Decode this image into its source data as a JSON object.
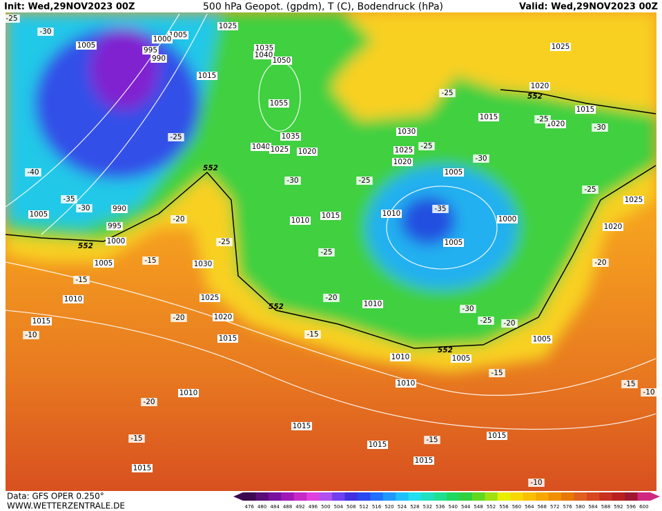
{
  "header": {
    "init": "Init: Wed,29NOV2023 00Z",
    "title": "500 hPa Geopot. (gpdm), T (C), Bodendruck (hPa)",
    "valid": "Valid: Wed,29NOV2023 00Z"
  },
  "footer": {
    "source": "Data: GFS OPER 0.250°",
    "url": "WWW.WETTERZENTRALE.DE"
  },
  "colorbar": {
    "levels": [
      476,
      480,
      484,
      488,
      492,
      496,
      500,
      504,
      508,
      512,
      516,
      520,
      524,
      528,
      532,
      536,
      540,
      544,
      548,
      552,
      556,
      560,
      564,
      568,
      572,
      576,
      580,
      584,
      588,
      592,
      596,
      600
    ],
    "colors": [
      "#3b0a50",
      "#5a0c78",
      "#7a10a0",
      "#a018b8",
      "#c828c8",
      "#e040e0",
      "#b050f0",
      "#7040f0",
      "#4030e0",
      "#2848f0",
      "#2070ff",
      "#2098ff",
      "#20c0ff",
      "#20e0f0",
      "#20e0c0",
      "#20e090",
      "#20d860",
      "#30d040",
      "#60d820",
      "#a0e010",
      "#e8f000",
      "#f8d800",
      "#f8c000",
      "#f8a800",
      "#f09000",
      "#e87800",
      "#e06020",
      "#d84820",
      "#c83020",
      "#b82020",
      "#a01830",
      "#d02880"
    ]
  },
  "labels": [
    "1005",
    "1005",
    "1000",
    "995",
    "990",
    "1025",
    "1015",
    "1035",
    "1040",
    "1050",
    "1055",
    "1035",
    "1040",
    "1025",
    "1020",
    "1030",
    "1025",
    "1020",
    "1015",
    "1005",
    "1010",
    "1000",
    "1005",
    "1010",
    "1015",
    "1025",
    "1020",
    "1015",
    "1020",
    "1025",
    "1020",
    "990",
    "995",
    "1000",
    "1005",
    "1005",
    "1010",
    "1015",
    "1030",
    "1025",
    "1020",
    "1015",
    "1010",
    "1010",
    "1005",
    "1005",
    "1010",
    "1010",
    "1015",
    "1015",
    "1015",
    "1015",
    "1015",
    "-30",
    "-25",
    "-25",
    "-40",
    "-35",
    "-30",
    "-20",
    "-25",
    "-15",
    "-15",
    "-30",
    "-25",
    "-20",
    "-25",
    "-25",
    "-30",
    "-35",
    "-25",
    "-25",
    "-30",
    "-25",
    "-20",
    "-20",
    "-15",
    "-10",
    "-20",
    "-15",
    "-15",
    "-15",
    "-15",
    "-10",
    "-10",
    "-30",
    "-25",
    "-20",
    "552",
    "552",
    "552",
    "552",
    "552"
  ]
}
